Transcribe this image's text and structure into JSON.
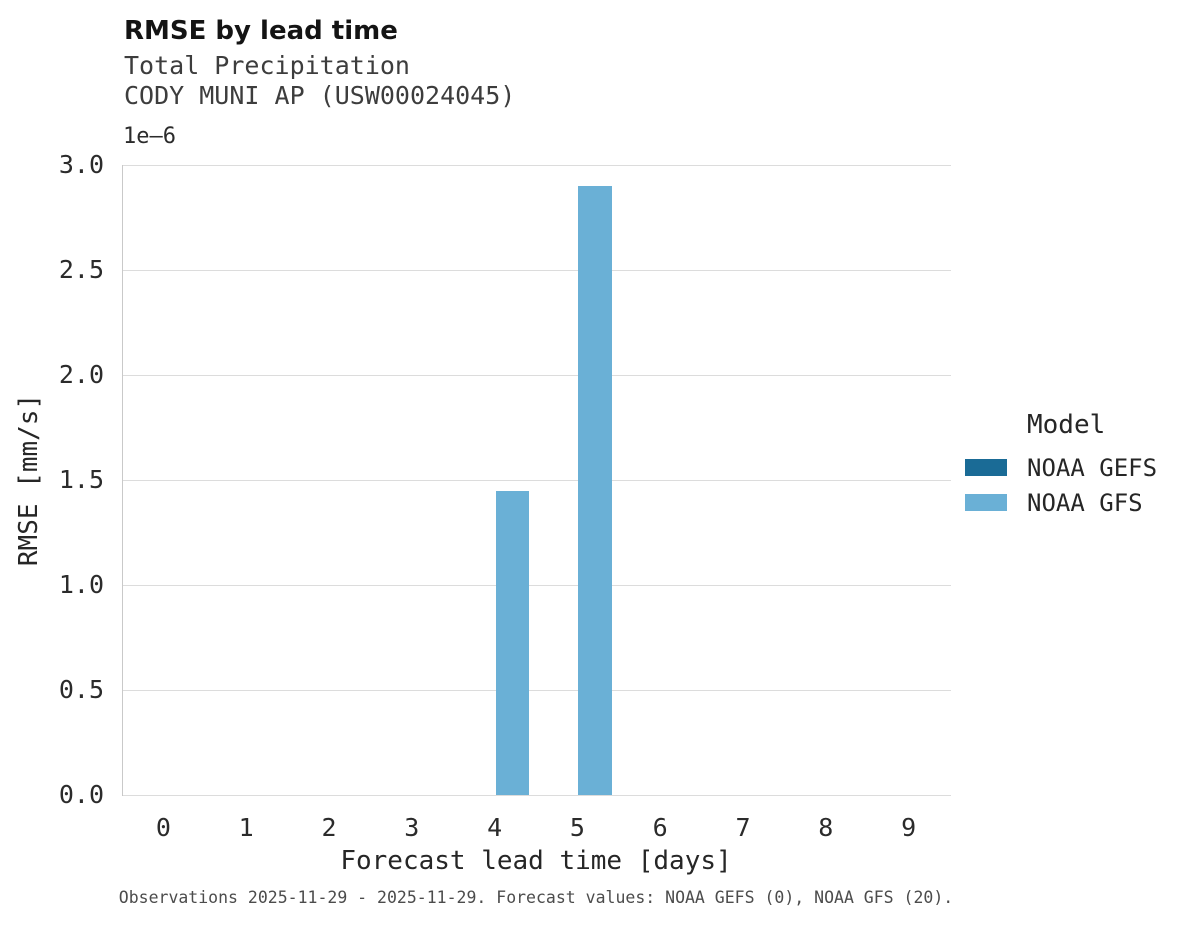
{
  "chart_data": {
    "type": "bar",
    "title": "RMSE by lead time",
    "subtitle_lines": [
      "Total Precipitation",
      "CODY MUNI AP (USW00024045)"
    ],
    "xlabel": "Forecast lead time [days]",
    "ylabel": "RMSE [mm/s]",
    "y_offset_label": "1e–6",
    "categories": [
      "0",
      "1",
      "2",
      "3",
      "4",
      "5",
      "6",
      "7",
      "8",
      "9"
    ],
    "series": [
      {
        "name": "NOAA GEFS",
        "color": "#1a6b96",
        "values": [
          0,
          0,
          0,
          0,
          0,
          0,
          0,
          0,
          0,
          0
        ]
      },
      {
        "name": "NOAA GFS",
        "color": "#6ab0d6",
        "values": [
          0,
          0,
          0,
          0,
          1.45e-06,
          2.9e-06,
          0,
          0,
          0,
          0
        ]
      }
    ],
    "ylim": [
      0,
      3e-06
    ],
    "yticks": [
      {
        "value": 0,
        "label": "0.0"
      },
      {
        "value": 5e-07,
        "label": "0.5"
      },
      {
        "value": 1e-06,
        "label": "1.0"
      },
      {
        "value": 1.5e-06,
        "label": "1.5"
      },
      {
        "value": 2e-06,
        "label": "2.0"
      },
      {
        "value": 2.5e-06,
        "label": "2.5"
      },
      {
        "value": 3e-06,
        "label": "3.0"
      }
    ],
    "grid": true,
    "legend_title": "Model",
    "legend_position": "right"
  },
  "caption": "Observations 2025-11-29 - 2025-11-29. Forecast values: NOAA GEFS (0), NOAA GFS (20)."
}
